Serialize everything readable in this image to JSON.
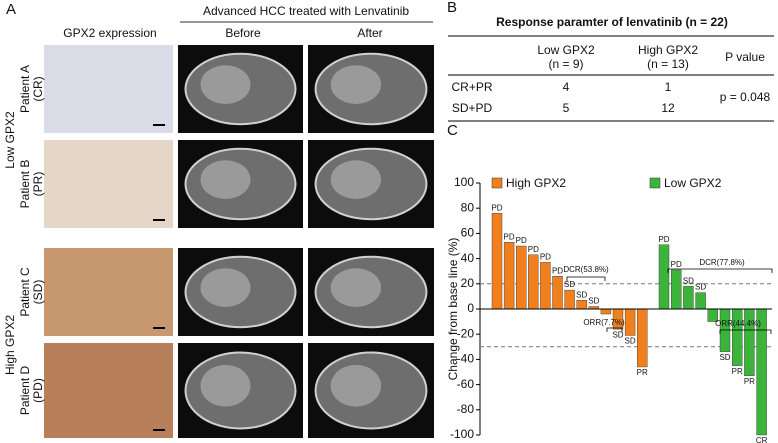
{
  "panel_a": {
    "letter": "A",
    "col_headers": [
      "GPX2 expression",
      "Before",
      "After"
    ],
    "treatment_header": "Advanced HCC treated with Lenvatinib",
    "groups": [
      "Low GPX2",
      "High GPX2"
    ],
    "patients": [
      [
        "Patient A",
        "(CR)"
      ],
      [
        "Patient B",
        "(PR)"
      ],
      [
        "Patient C",
        "(SD)"
      ],
      [
        "Patient D",
        "(PD)"
      ]
    ]
  },
  "panel_b": {
    "letter": "B",
    "title": "Response paramter  of lenvatinib (n = 22)",
    "columns": [
      [
        "Low GPX2",
        "(n = 9)"
      ],
      [
        "High GPX2",
        "(n = 13)"
      ],
      [
        "P value"
      ]
    ],
    "rows": [
      [
        "CR+PR",
        "4",
        "1"
      ],
      [
        "SD+PD",
        "5",
        "12"
      ]
    ],
    "p_value": "p = 0.048"
  },
  "chart_data": {
    "type": "bar",
    "letter": "C",
    "y_label": "Change from base line (%)",
    "ylim": [
      -100,
      100
    ],
    "yticks": [
      -100,
      -80,
      -60,
      -40,
      -20,
      0,
      20,
      40,
      60,
      80,
      100
    ],
    "reference_lines": [
      20,
      -30
    ],
    "series": [
      {
        "name": "High GPX2",
        "color": "#f07f1e",
        "values": [
          76,
          53,
          50,
          43,
          37,
          26,
          15,
          7,
          2,
          -4,
          -16,
          -21,
          -46
        ],
        "labels": [
          "PD",
          "PD",
          "PD",
          "PD",
          "PD",
          "PD",
          "SD",
          "SD",
          "SD",
          null,
          "SD",
          "SD",
          "PR"
        ]
      },
      {
        "name": "Low GPX2",
        "color": "#3cb43c",
        "values": [
          51,
          31,
          18,
          13,
          -10,
          -34,
          -45,
          -53,
          -100
        ],
        "labels": [
          "PD",
          "PD",
          "SD",
          "SD",
          null,
          "SD",
          "PR",
          "PR",
          "CR"
        ]
      }
    ],
    "annotations": [
      "DCR(53.8%)",
      "ORR(7.7%)",
      "DCR(77.8%)",
      "ORR(44.4%)"
    ]
  }
}
